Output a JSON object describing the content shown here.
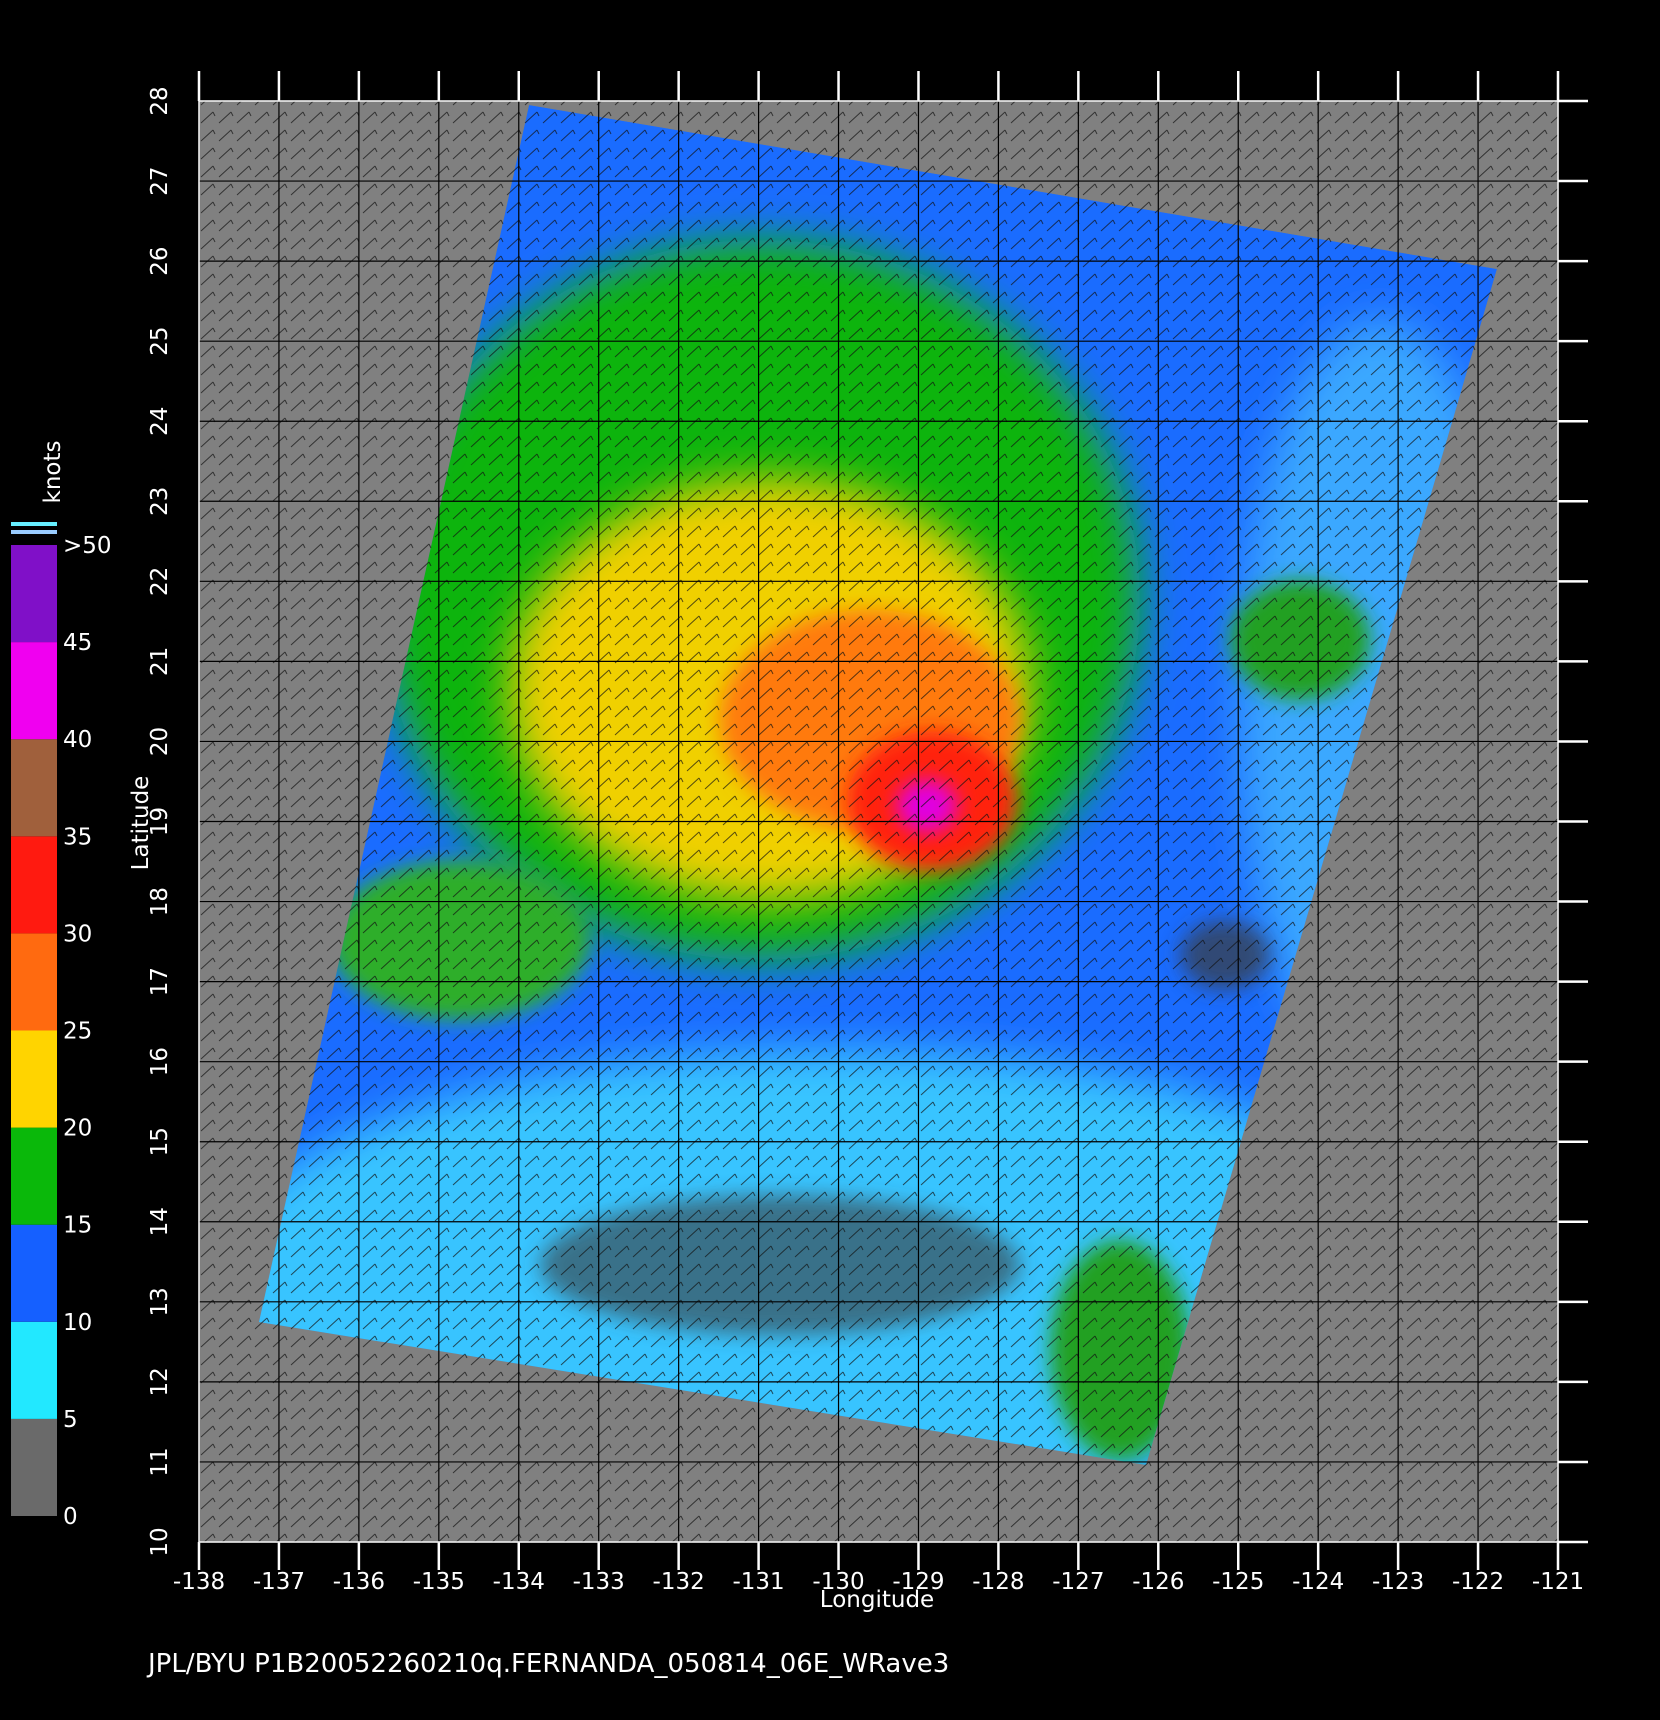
{
  "chart_data": {
    "type": "map",
    "title": "JPL/BYU  P1B20052260210q.FERNANDA_050814_06E_WRave3",
    "xlabel": "Longitude",
    "ylabel": "Latitude",
    "xlim": [
      -138,
      -121
    ],
    "ylim": [
      10,
      28
    ],
    "xticks": [
      -138,
      -137,
      -136,
      -135,
      -134,
      -133,
      -132,
      -131,
      -130,
      -129,
      -128,
      -127,
      -126,
      -125,
      -124,
      -123,
      -122,
      -121
    ],
    "yticks": [
      10,
      11,
      12,
      13,
      14,
      15,
      16,
      17,
      18,
      19,
      20,
      21,
      22,
      23,
      24,
      25,
      26,
      27,
      28
    ],
    "grid": true,
    "colorbar": {
      "label": "knots",
      "ticks": [
        0,
        5,
        10,
        15,
        20,
        25,
        30,
        35,
        40,
        45,
        {
          "value": 50,
          "label": ">50"
        }
      ],
      "colors": [
        "#6a6a6a",
        "#22e8ff",
        "#1560ff",
        "#0ab80a",
        "#ffd400",
        "#ff6a10",
        "#ff1a10",
        "#a0603c",
        "#f000f0",
        "#8010c8"
      ]
    }
  }
}
